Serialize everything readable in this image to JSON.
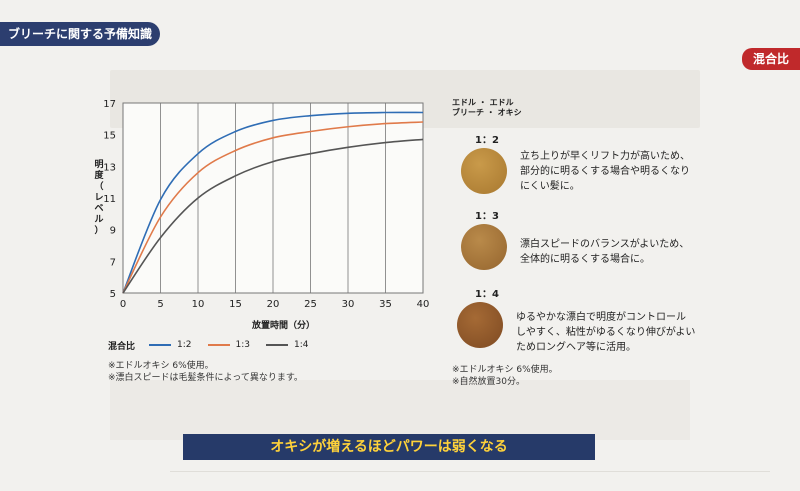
{
  "header": {
    "section_tag": "ブリーチに関する予備知識",
    "right_tag": "混合比"
  },
  "chart": {
    "ylabel_lines": [
      "明",
      "度",
      "（",
      "レ",
      "ベ",
      "ル",
      "）"
    ],
    "xlabel": "放置時間（分）",
    "legend_label": "混合比",
    "notes": [
      "※エドルオキシ 6%使用。",
      "※漂白スピードは毛髪条件によって異なります。"
    ]
  },
  "chart_data": {
    "type": "line",
    "x": [
      0,
      5,
      10,
      15,
      20,
      25,
      30,
      35,
      40
    ],
    "xlim": [
      0,
      40
    ],
    "ylim": [
      5,
      17
    ],
    "yticks": [
      5,
      7,
      9,
      11,
      13,
      15,
      17
    ],
    "grid": true,
    "legend_placement": "bottom-left",
    "series": [
      {
        "name": "1:2",
        "color": "#2f6db5",
        "values": [
          5,
          10.9,
          13.8,
          15.2,
          15.9,
          16.2,
          16.35,
          16.4,
          16.4
        ]
      },
      {
        "name": "1:3",
        "color": "#e07a4a",
        "values": [
          5,
          9.8,
          12.6,
          14.0,
          14.8,
          15.2,
          15.5,
          15.7,
          15.8
        ]
      },
      {
        "name": "1:4",
        "color": "#555555",
        "values": [
          5,
          8.5,
          11.0,
          12.4,
          13.3,
          13.8,
          14.2,
          14.5,
          14.7
        ]
      }
    ]
  },
  "panel": {
    "head_line1": "エドル ・ エドル",
    "head_line2": "ブリーチ ・ オキシ",
    "items": [
      {
        "ratio": "1：2",
        "color": "#b88a3a",
        "lines": [
          "立ち上りが早くリフト力が高いため、",
          "部分的に明るくする場合や明るくなり",
          "にくい髪に。"
        ]
      },
      {
        "ratio": "1：3",
        "color": "#a9793b",
        "lines": [
          "漂白スピードのバランスがよいため、",
          "全体的に明るくする場合に。"
        ]
      },
      {
        "ratio": "1：4",
        "color": "#8f5a2e",
        "lines": [
          "ゆるやかな漂白で明度がコントロール",
          "しやすく、粘性がゆるくなり伸びがよい",
          "ためロングヘア等に活用。"
        ]
      }
    ],
    "notes": [
      "※エドルオキシ 6%使用。",
      "※自然放置30分。"
    ]
  },
  "banner": "オキシが増えるほどパワーは弱くなる"
}
